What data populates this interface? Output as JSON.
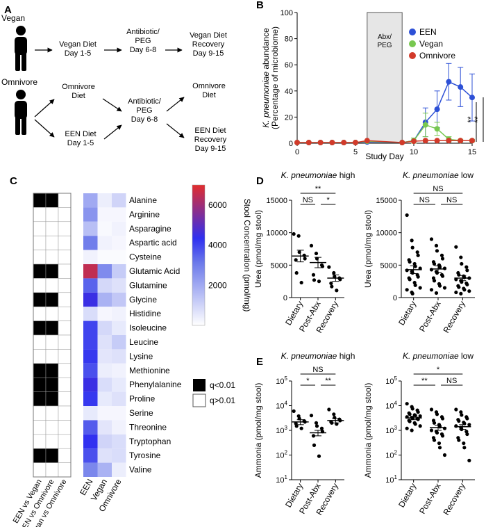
{
  "panels": {
    "a": "A",
    "b": "B",
    "c": "C",
    "d": "D",
    "e": "E"
  },
  "panel_a": {
    "groups": [
      "Vegan",
      "Omnivore"
    ],
    "vegan_flow": [
      "Vegan Diet\nDay 1-5",
      "Antibiotic/\nPEG\nDay 6-8",
      "Vegan Diet\nRecovery\nDay 9-15"
    ],
    "omni_upper": [
      "Omnivore\nDiet",
      "Omnivore\nDiet"
    ],
    "omni_mid": "Antibiotic/\nPEG\nDay 6-8",
    "omni_lower": [
      "EEN Diet\nDay 1-5",
      "EEN Diet\nRecovery\nDay 9-15"
    ]
  },
  "chart_data": [
    {
      "id": "B",
      "type": "line",
      "xlabel": "Study Day",
      "ylabel_line1": "K. pneumoniae abundance",
      "ylabel_line2": "(Percentage of microbiome)",
      "xlim": [
        0,
        15
      ],
      "ylim": [
        0,
        100
      ],
      "xticks": [
        0,
        5,
        10,
        15
      ],
      "yticks": [
        0,
        20,
        40,
        60,
        80,
        100
      ],
      "shaded_region": {
        "x": [
          6,
          9
        ],
        "label": "Abx/\nPEG"
      },
      "legend_position": "top-right",
      "series": [
        {
          "name": "EEN",
          "color": "#2d50d6",
          "x": [
            0,
            1,
            2,
            3,
            4,
            5,
            6,
            9,
            10,
            11,
            12,
            13,
            14,
            15
          ],
          "y": [
            0.5,
            0.5,
            0.5,
            0.5,
            0.5,
            0.5,
            1,
            0.5,
            2,
            16,
            26,
            47,
            43,
            35
          ],
          "err": [
            0,
            0,
            0,
            0,
            0,
            0,
            0,
            0,
            2,
            11,
            14,
            14,
            15,
            18
          ]
        },
        {
          "name": "Vegan",
          "color": "#78c850",
          "x": [
            0,
            1,
            2,
            3,
            4,
            5,
            6,
            9,
            10,
            11,
            12,
            13,
            14,
            15
          ],
          "y": [
            0.5,
            0.5,
            0.5,
            0.5,
            0.5,
            0.5,
            1.5,
            0.5,
            2,
            14,
            11,
            3,
            2,
            2
          ],
          "err": [
            0,
            0,
            0,
            0,
            0,
            0,
            0,
            0,
            2,
            9,
            5,
            2,
            1,
            1
          ]
        },
        {
          "name": "Omnivore",
          "color": "#d23a2a",
          "x": [
            0,
            1,
            2,
            3,
            4,
            5,
            6,
            9,
            10,
            11,
            12,
            13,
            14,
            15
          ],
          "y": [
            0.5,
            0.5,
            0.5,
            0.5,
            0.5,
            0.5,
            2,
            0.5,
            1.5,
            2,
            2,
            2,
            2,
            2
          ],
          "err": [
            0,
            0,
            0,
            0,
            0,
            0,
            0,
            0,
            0,
            0,
            0,
            0,
            0,
            0
          ]
        }
      ],
      "significance": [
        "**",
        "**"
      ]
    },
    {
      "id": "C",
      "type": "heatmap",
      "rows": [
        "Alanine",
        "Arginine",
        "Asparagine",
        "Aspartic acid",
        "Cysteine",
        "Glutamic Acid",
        "Glutamine",
        "Glycine",
        "Histidine",
        "Isoleucine",
        "Leucine",
        "Lysine",
        "Methionine",
        "Phenylalanine",
        "Proline",
        "Serine",
        "Threonine",
        "Tryptophan",
        "Tyrosine",
        "Valine"
      ],
      "sig_columns": [
        "EEN vs Vegan",
        "EEN vs Omnivore",
        "Vegan vs Omnivore"
      ],
      "sig_matrix": [
        [
          1,
          1,
          0
        ],
        [
          0,
          0,
          0
        ],
        [
          0,
          0,
          0
        ],
        [
          0,
          0,
          0
        ],
        [
          0,
          0,
          0
        ],
        [
          1,
          1,
          0
        ],
        [
          0,
          0,
          0
        ],
        [
          1,
          1,
          0
        ],
        [
          0,
          0,
          0
        ],
        [
          1,
          1,
          0
        ],
        [
          0,
          0,
          0
        ],
        [
          0,
          0,
          0
        ],
        [
          1,
          1,
          0
        ],
        [
          1,
          1,
          0
        ],
        [
          1,
          1,
          0
        ],
        [
          0,
          0,
          0
        ],
        [
          0,
          0,
          0
        ],
        [
          0,
          0,
          0
        ],
        [
          1,
          1,
          0
        ],
        [
          0,
          0,
          0
        ]
      ],
      "conc_columns": [
        "EEN",
        "Vegan",
        "Omnivore"
      ],
      "conc_matrix": [
        [
          2000,
          400,
          1000
        ],
        [
          2500,
          200,
          200
        ],
        [
          1500,
          150,
          300
        ],
        [
          3000,
          300,
          200
        ],
        [
          300,
          100,
          100
        ],
        [
          6500,
          2700,
          1200
        ],
        [
          3500,
          900,
          700
        ],
        [
          4500,
          1800,
          1300
        ],
        [
          800,
          200,
          300
        ],
        [
          4000,
          900,
          500
        ],
        [
          4000,
          700,
          1200
        ],
        [
          4200,
          600,
          700
        ],
        [
          3800,
          400,
          300
        ],
        [
          4500,
          800,
          500
        ],
        [
          4200,
          500,
          700
        ],
        [
          500,
          200,
          200
        ],
        [
          3600,
          600,
          300
        ],
        [
          4300,
          1000,
          800
        ],
        [
          3800,
          700,
          800
        ],
        [
          2800,
          1800,
          400
        ]
      ],
      "colorbar_label": "Stool Concentration (pmol/mg)",
      "colorbar_ticks": [
        2000,
        4000,
        6000
      ],
      "colorbar_range": [
        0,
        7000
      ],
      "sig_legend": [
        "q<0.01",
        "q>0.01"
      ]
    },
    {
      "id": "D-high",
      "type": "scatter",
      "title": "K. pneumoniae high",
      "ylabel": "Urea (pmol/mg stool)",
      "categories": [
        "Dietary",
        "Post-Abx",
        "Recovery"
      ],
      "ylim": [
        0,
        15000
      ],
      "yticks": [
        0,
        5000,
        10000,
        15000
      ],
      "means": [
        6400,
        5400,
        3000
      ],
      "sem": [
        900,
        800,
        500
      ],
      "points": [
        [
          9800,
          9500,
          7000,
          6500,
          6000,
          5800,
          3800,
          2300
        ],
        [
          8000,
          6800,
          6000,
          5000,
          4800,
          3500,
          2700,
          2500
        ],
        [
          4700,
          3800,
          3200,
          3000,
          2800,
          2200,
          1700,
          1100
        ]
      ],
      "brackets": [
        {
          "from": 0,
          "to": 2,
          "label": "**",
          "level": 2
        },
        {
          "from": 0,
          "to": 1,
          "label": "NS",
          "level": 1
        },
        {
          "from": 1,
          "to": 2,
          "label": "*",
          "level": 1
        }
      ]
    },
    {
      "id": "D-low",
      "type": "scatter",
      "title": "K. pneumoniae low",
      "ylabel": "Urea (pmol/mg stool)",
      "categories": [
        "Dietary",
        "Post-Abx",
        "Recovery"
      ],
      "ylim": [
        0,
        15000
      ],
      "yticks": [
        0,
        5000,
        10000,
        15000
      ],
      "means": [
        4300,
        4400,
        3000
      ],
      "sem": [
        600,
        500,
        400
      ],
      "points": [
        [
          12700,
          8800,
          7700,
          7000,
          6500,
          5800,
          5500,
          5200,
          4800,
          4500,
          4200,
          4000,
          3800,
          3500,
          3200,
          3000,
          2800,
          2300,
          1900,
          1500,
          1200,
          800,
          600
        ],
        [
          9000,
          8000,
          7200,
          6500,
          6000,
          5500,
          5200,
          5000,
          4700,
          4500,
          4300,
          4000,
          3800,
          3500,
          3300,
          3000,
          2600,
          2100,
          1800,
          1500,
          1200,
          700
        ],
        [
          7800,
          6200,
          5200,
          4700,
          4200,
          3800,
          3500,
          3300,
          3100,
          3000,
          2800,
          2600,
          2400,
          2200,
          2000,
          1800,
          1600,
          1400,
          1200,
          1000,
          800,
          600
        ]
      ],
      "brackets": [
        {
          "from": 0,
          "to": 2,
          "label": "NS",
          "level": 2
        },
        {
          "from": 0,
          "to": 1,
          "label": "NS",
          "level": 1
        },
        {
          "from": 1,
          "to": 2,
          "label": "NS",
          "level": 1
        }
      ]
    },
    {
      "id": "E-high",
      "type": "scatter",
      "scale": "log",
      "title": "K. pneumoniae high",
      "ylabel": "Ammonia (pmol/mg stool)",
      "categories": [
        "Dietary",
        "Post-Abx",
        "Recovery"
      ],
      "ylim": [
        10,
        100000
      ],
      "yticks": [
        "10^1",
        "10^2",
        "10^3",
        "10^4",
        "10^5"
      ],
      "means": [
        2200,
        800,
        2500
      ],
      "sem": [
        500,
        200,
        500
      ],
      "points": [
        [
          6000,
          3800,
          3000,
          2400,
          2200,
          1900,
          1500,
          1200
        ],
        [
          4000,
          2000,
          1500,
          1200,
          900,
          600,
          250,
          90
        ],
        [
          7000,
          4500,
          3300,
          2800,
          2500,
          2200,
          2000,
          1800
        ]
      ],
      "brackets": [
        {
          "from": 0,
          "to": 2,
          "label": "NS",
          "level": 2
        },
        {
          "from": 0,
          "to": 1,
          "label": "*",
          "level": 1
        },
        {
          "from": 1,
          "to": 2,
          "label": "**",
          "level": 1
        }
      ]
    },
    {
      "id": "E-low",
      "type": "scatter",
      "scale": "log",
      "title": "K. pneumoniae low",
      "ylabel": "Ammonia (pmol/mg stool)",
      "categories": [
        "Dietary",
        "Post-Abx",
        "Recovery"
      ],
      "ylim": [
        10,
        100000
      ],
      "yticks": [
        "10^1",
        "10^2",
        "10^3",
        "10^4",
        "10^5"
      ],
      "means": [
        3200,
        1300,
        1400
      ],
      "sem": [
        500,
        300,
        300
      ],
      "points": [
        [
          12000,
          9000,
          7500,
          6500,
          5500,
          5000,
          4500,
          4200,
          4000,
          3800,
          3500,
          3300,
          3100,
          3000,
          2800,
          2500,
          2300,
          2000,
          1800,
          1500,
          1200,
          1000
        ],
        [
          7000,
          5500,
          4500,
          3500,
          3000,
          2500,
          2000,
          1700,
          1400,
          1200,
          1000,
          900,
          800,
          700,
          600,
          500,
          400,
          300,
          200,
          100
        ],
        [
          7000,
          5500,
          4200,
          3500,
          3000,
          2700,
          2400,
          2100,
          1900,
          1700,
          1500,
          1300,
          1100,
          900,
          700,
          500,
          400,
          300,
          200,
          60
        ]
      ],
      "brackets": [
        {
          "from": 0,
          "to": 2,
          "label": "*",
          "level": 2
        },
        {
          "from": 0,
          "to": 1,
          "label": "**",
          "level": 1
        },
        {
          "from": 1,
          "to": 2,
          "label": "NS",
          "level": 1
        }
      ]
    }
  ]
}
